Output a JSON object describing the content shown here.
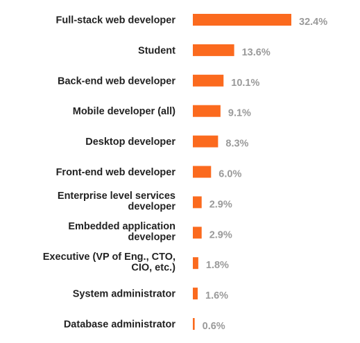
{
  "chart_data": {
    "type": "bar",
    "orientation": "horizontal",
    "categories": [
      "Full-stack web developer",
      "Student",
      "Back-end web developer",
      "Mobile developer (all)",
      "Desktop developer",
      "Front-end web developer",
      "Enterprise level services developer",
      "Embedded application developer",
      "Executive (VP of Eng., CTO, CIO, etc.)",
      "System administrator",
      "Database administrator"
    ],
    "category_lines": [
      [
        "Full-stack web developer"
      ],
      [
        "Student"
      ],
      [
        "Back-end web developer"
      ],
      [
        "Mobile developer (all)"
      ],
      [
        "Desktop developer"
      ],
      [
        "Front-end web developer"
      ],
      [
        "Enterprise level services",
        "developer"
      ],
      [
        "Embedded application",
        "developer"
      ],
      [
        "Executive (VP of Eng., CTO,",
        "CIO, etc.)"
      ],
      [
        "System administrator"
      ],
      [
        "Database administrator"
      ]
    ],
    "values": [
      32.4,
      13.6,
      10.1,
      9.1,
      8.3,
      6.0,
      2.9,
      2.9,
      1.8,
      1.6,
      0.6
    ],
    "value_labels": [
      "32.4%",
      "13.6%",
      "10.1%",
      "9.1%",
      "8.3%",
      "6.0%",
      "2.9%",
      "2.9%",
      "1.8%",
      "1.6%",
      "0.6%"
    ],
    "unit": "%",
    "xlim": [
      0,
      32.4
    ],
    "grid": false,
    "legend": "none"
  },
  "colors": {
    "bar": "#fb6a1e",
    "category_text": "#222222",
    "value_text": "#9a9a9a"
  }
}
